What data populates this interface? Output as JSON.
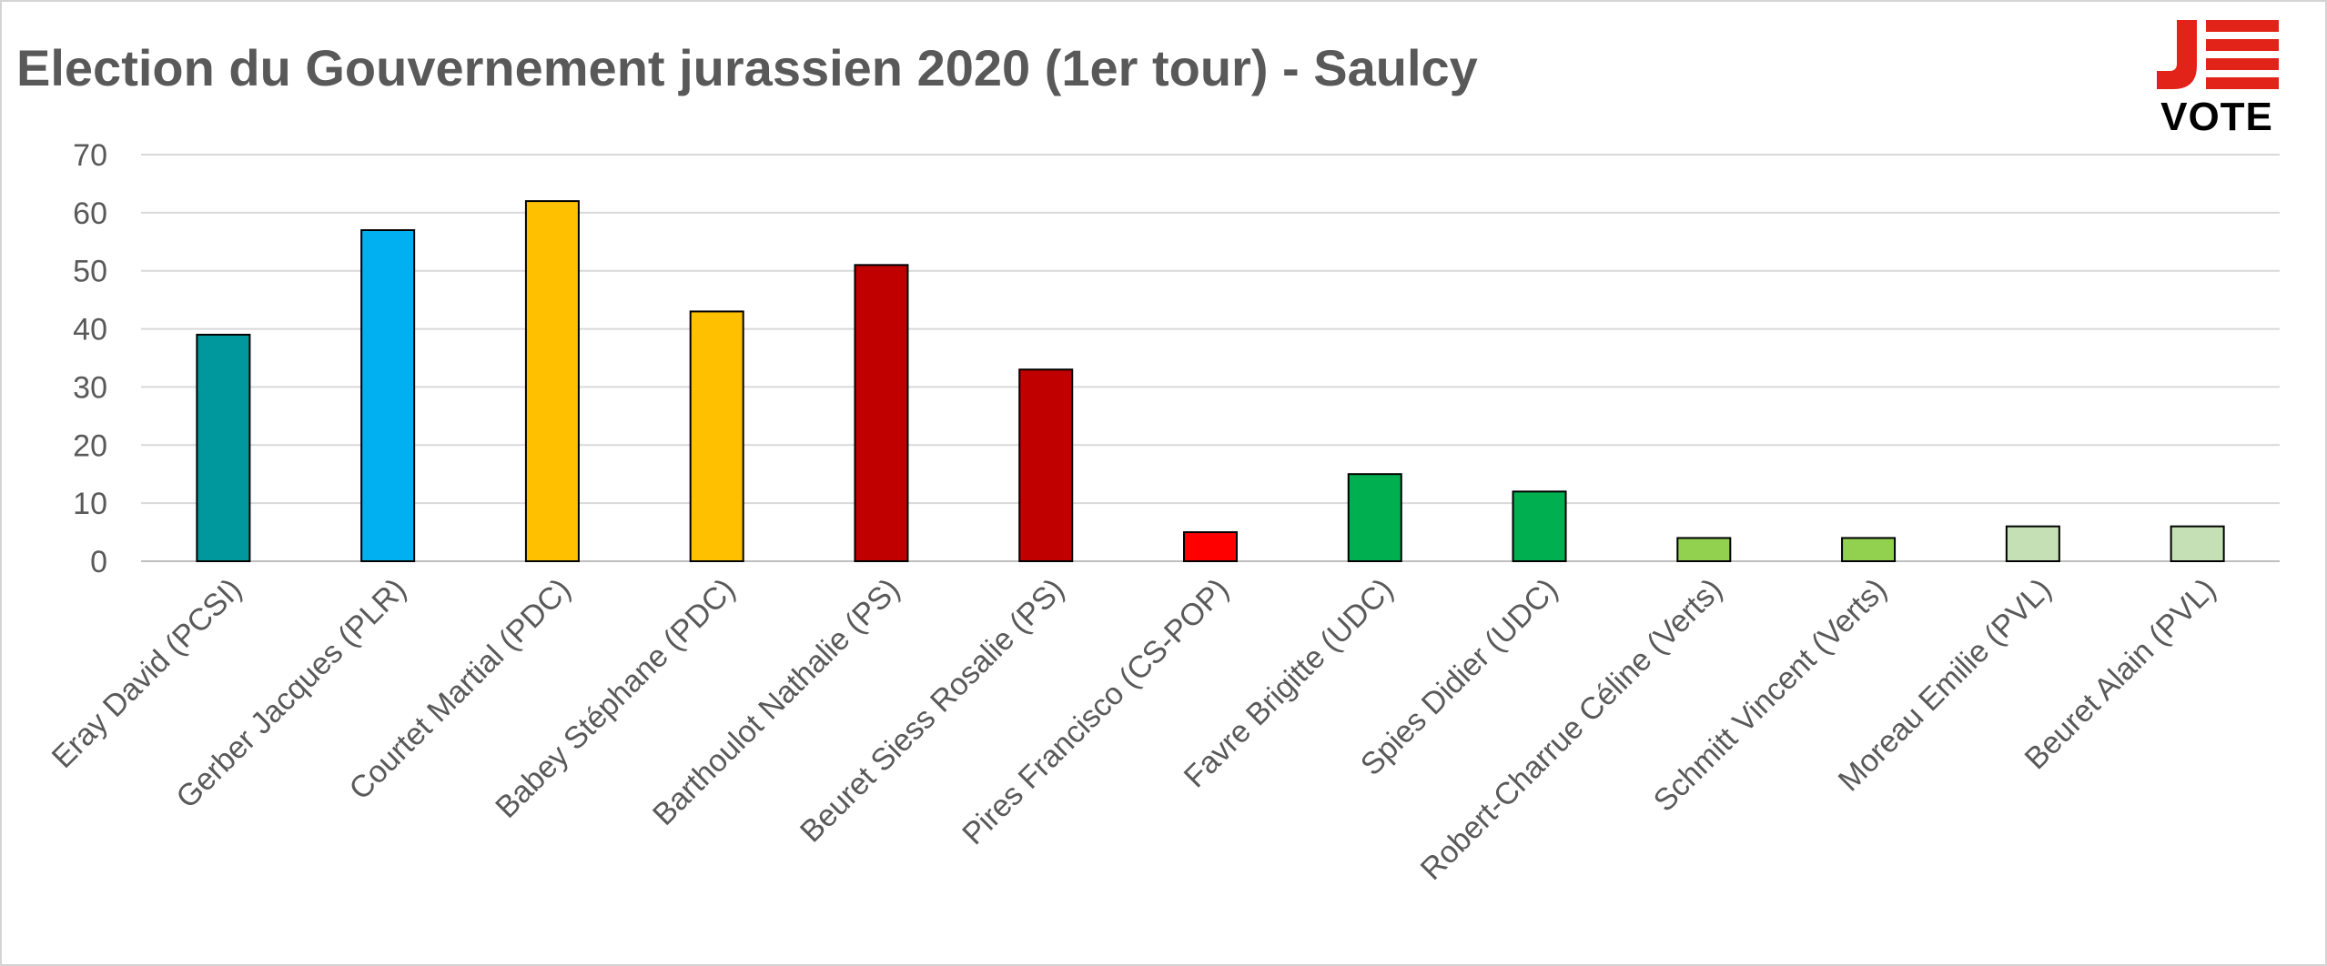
{
  "chart_data": {
    "type": "bar",
    "title": "Election du Gouvernement jurassien 2020 (1er tour) - Saulcy",
    "xlabel": "",
    "ylabel": "",
    "ylim": [
      0,
      70
    ],
    "yticks": [
      0,
      10,
      20,
      30,
      40,
      50,
      60,
      70
    ],
    "grid": true,
    "legend": "none",
    "categories": [
      "Eray David (PCSI)",
      "Gerber Jacques (PLR)",
      "Courtet Martial (PDC)",
      "Babey Stéphane (PDC)",
      "Barthoulot Nathalie (PS)",
      "Beuret Siess Rosalie (PS)",
      "Pires Francisco (CS-POP)",
      "Favre Brigitte (UDC)",
      "Spies Didier (UDC)",
      "Robert-Charrue Céline (Verts)",
      "Schmitt Vincent (Verts)",
      "Moreau Emilie (PVL)",
      "Beuret Alain (PVL)"
    ],
    "values": [
      39,
      57,
      62,
      43,
      51,
      33,
      5,
      15,
      12,
      4,
      4,
      6,
      6
    ],
    "colors": [
      "#00979d",
      "#00b0f0",
      "#ffc000",
      "#ffc000",
      "#c00000",
      "#c00000",
      "#ff0000",
      "#00b050",
      "#00b050",
      "#92d050",
      "#92d050",
      "#c5e0b4",
      "#c5e0b4"
    ]
  },
  "logo": {
    "text": "VOTE",
    "name": "Je Vote",
    "red": "#e2231a"
  }
}
